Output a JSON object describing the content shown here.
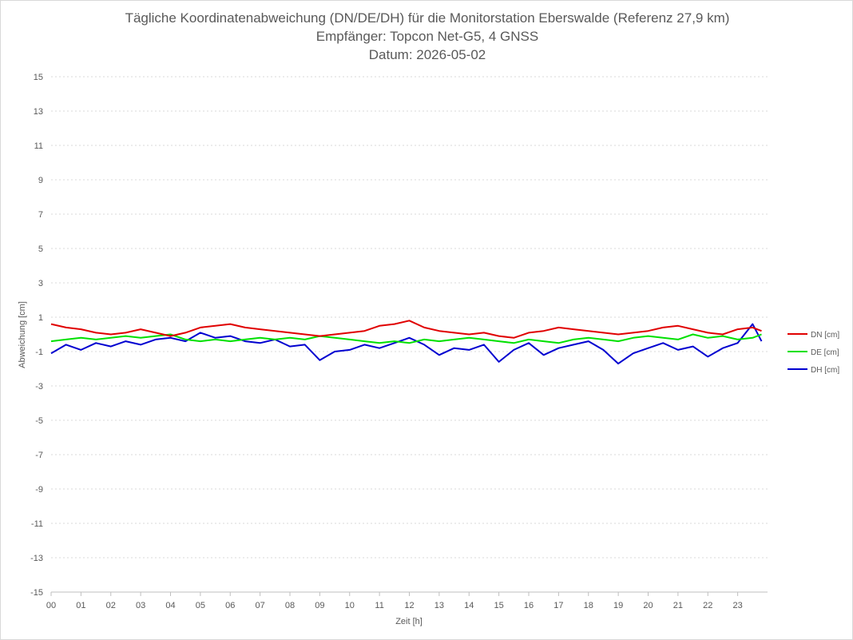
{
  "chart_data": {
    "type": "line",
    "title": [
      "Tägliche Koordinatenabweichung (DN/DE/DH) für die Monitorstation Eberswalde (Referenz 27,9 km)",
      "Empfänger: Topcon Net-G5, 4 GNSS",
      "Datum: 2026-05-02"
    ],
    "xlabel": "Zeit [h]",
    "ylabel": "Abweichung [cm]",
    "xlim": [
      0,
      24
    ],
    "ylim": [
      -15,
      15
    ],
    "x_tick_labels": [
      "00",
      "01",
      "02",
      "03",
      "04",
      "05",
      "06",
      "07",
      "08",
      "09",
      "10",
      "11",
      "12",
      "13",
      "14",
      "15",
      "16",
      "17",
      "18",
      "19",
      "20",
      "21",
      "22",
      "23"
    ],
    "y_tick_labels": [
      "15",
      "13",
      "11",
      "9",
      "7",
      "5",
      "3",
      "1",
      "-1",
      "-3",
      "-5",
      "-7",
      "-9",
      "-11",
      "-13",
      "-15"
    ],
    "y_ticks": [
      15,
      13,
      11,
      9,
      7,
      5,
      3,
      1,
      -1,
      -3,
      -5,
      -7,
      -9,
      -11,
      -13,
      -15
    ],
    "grid": true,
    "legend_position": "right",
    "x": [
      0.0,
      0.5,
      1.0,
      1.5,
      2.0,
      2.5,
      3.0,
      3.5,
      4.0,
      4.5,
      5.0,
      5.5,
      6.0,
      6.5,
      7.0,
      7.5,
      8.0,
      8.5,
      9.0,
      9.5,
      10.0,
      10.5,
      11.0,
      11.5,
      12.0,
      12.5,
      13.0,
      13.5,
      14.0,
      14.5,
      15.0,
      15.5,
      16.0,
      16.5,
      17.0,
      17.5,
      18.0,
      18.5,
      19.0,
      19.5,
      20.0,
      20.5,
      21.0,
      21.5,
      22.0,
      22.5,
      23.0,
      23.5,
      23.8
    ],
    "series": [
      {
        "name": "DN [cm]",
        "color": "#e00000",
        "values": [
          0.6,
          0.4,
          0.3,
          0.1,
          0.0,
          0.1,
          0.3,
          0.1,
          -0.1,
          0.1,
          0.4,
          0.5,
          0.6,
          0.4,
          0.3,
          0.2,
          0.1,
          0.0,
          -0.1,
          0.0,
          0.1,
          0.2,
          0.5,
          0.6,
          0.8,
          0.4,
          0.2,
          0.1,
          0.0,
          0.1,
          -0.1,
          -0.2,
          0.1,
          0.2,
          0.4,
          0.3,
          0.2,
          0.1,
          0.0,
          0.1,
          0.2,
          0.4,
          0.5,
          0.3,
          0.1,
          0.0,
          0.3,
          0.4,
          0.2
        ]
      },
      {
        "name": "DE [cm]",
        "color": "#00e000",
        "values": [
          -0.4,
          -0.3,
          -0.2,
          -0.3,
          -0.2,
          -0.1,
          -0.2,
          -0.1,
          0.0,
          -0.3,
          -0.4,
          -0.3,
          -0.4,
          -0.3,
          -0.2,
          -0.3,
          -0.2,
          -0.3,
          -0.1,
          -0.2,
          -0.3,
          -0.4,
          -0.5,
          -0.4,
          -0.5,
          -0.3,
          -0.4,
          -0.3,
          -0.2,
          -0.3,
          -0.4,
          -0.5,
          -0.3,
          -0.4,
          -0.5,
          -0.3,
          -0.2,
          -0.3,
          -0.4,
          -0.2,
          -0.1,
          -0.2,
          -0.3,
          0.0,
          -0.2,
          -0.1,
          -0.3,
          -0.2,
          0.0
        ]
      },
      {
        "name": "DH [cm]",
        "color": "#0000d0",
        "values": [
          -1.1,
          -0.6,
          -0.9,
          -0.5,
          -0.7,
          -0.4,
          -0.6,
          -0.3,
          -0.2,
          -0.4,
          0.1,
          -0.2,
          -0.1,
          -0.4,
          -0.5,
          -0.3,
          -0.7,
          -0.6,
          -1.5,
          -1.0,
          -0.9,
          -0.6,
          -0.8,
          -0.5,
          -0.2,
          -0.6,
          -1.2,
          -0.8,
          -0.9,
          -0.6,
          -1.6,
          -0.9,
          -0.5,
          -1.2,
          -0.8,
          -0.6,
          -0.4,
          -0.9,
          -1.7,
          -1.1,
          -0.8,
          -0.5,
          -0.9,
          -0.7,
          -1.3,
          -0.8,
          -0.5,
          0.6,
          -0.4
        ]
      }
    ]
  }
}
